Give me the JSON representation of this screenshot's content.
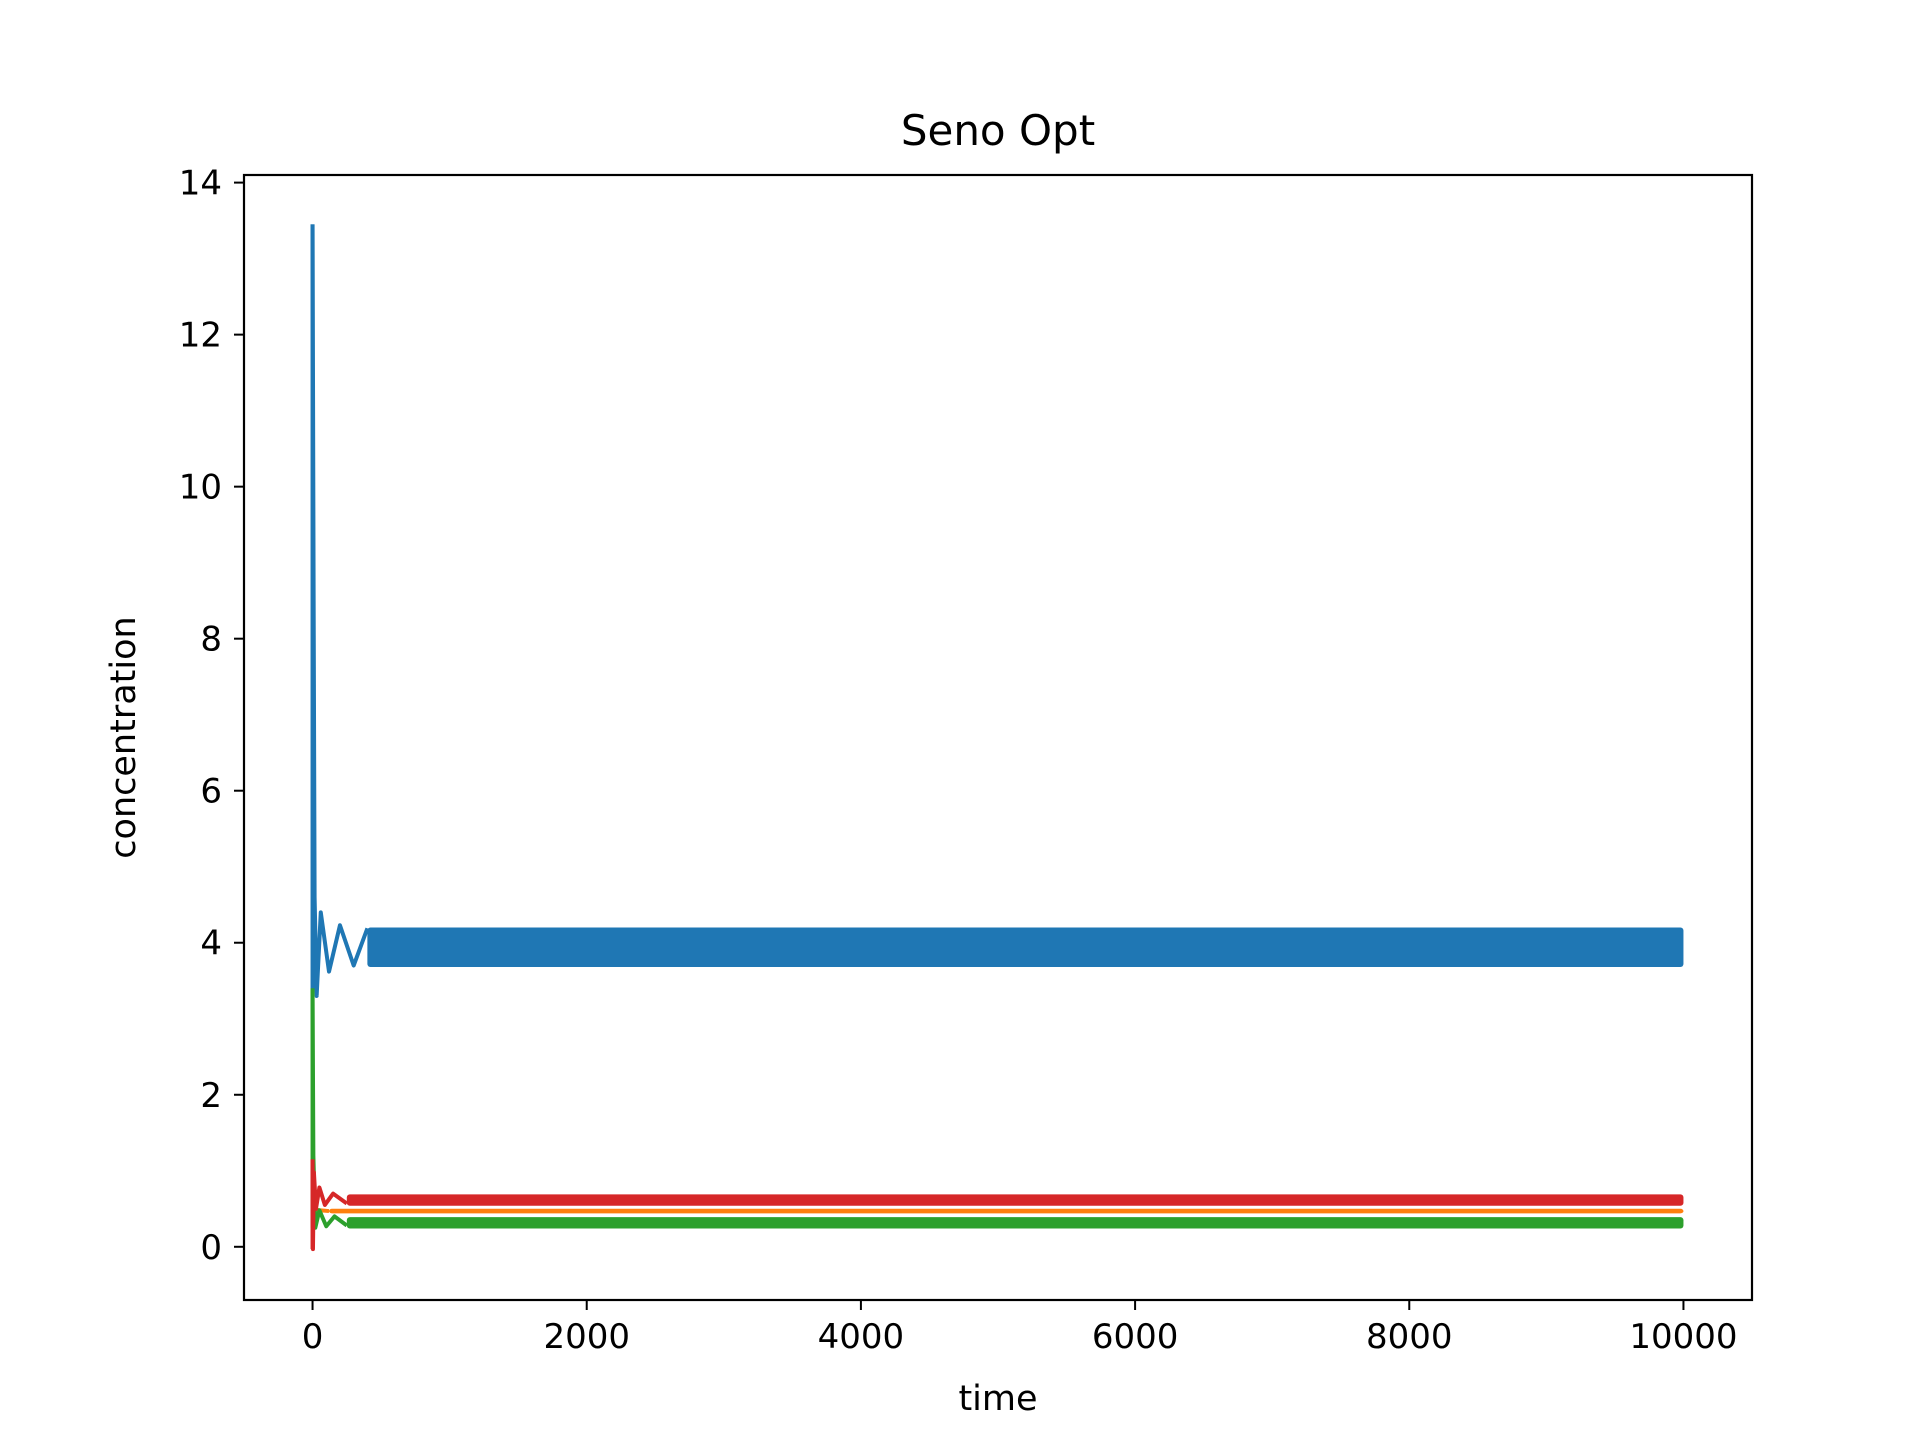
{
  "chart_data": {
    "type": "line",
    "title": "Seno Opt",
    "xlabel": "time",
    "ylabel": "concentration",
    "xlim": [
      -500,
      10500
    ],
    "ylim": [
      -0.7,
      14.1
    ],
    "xticks": [
      0,
      2000,
      4000,
      6000,
      8000,
      10000
    ],
    "yticks": [
      0,
      2,
      4,
      6,
      8,
      10,
      12,
      14
    ],
    "grid": false,
    "legend": "none",
    "series": [
      {
        "color": "#1f77b4",
        "initial": 13.45,
        "transient": [
          [
            0,
            13.45
          ],
          [
            8,
            8.5
          ],
          [
            15,
            4.6
          ],
          [
            30,
            3.3
          ],
          [
            60,
            4.4
          ],
          [
            120,
            3.62
          ],
          [
            200,
            4.23
          ],
          [
            300,
            3.7
          ],
          [
            400,
            4.19
          ]
        ],
        "band_low": 3.68,
        "band_high": 4.2,
        "t_end": 10000
      },
      {
        "color": "#ff7f0e",
        "initial": 0.5,
        "transient": [
          [
            0,
            0.5
          ],
          [
            50,
            0.48
          ],
          [
            120,
            0.47
          ]
        ],
        "band_low": 0.44,
        "band_high": 0.5,
        "t_end": 10000
      },
      {
        "color": "#2ca02c",
        "initial": 3.4,
        "transient": [
          [
            0,
            3.4
          ],
          [
            6,
            1.2
          ],
          [
            20,
            0.25
          ],
          [
            50,
            0.48
          ],
          [
            100,
            0.27
          ],
          [
            160,
            0.4
          ],
          [
            250,
            0.28
          ]
        ],
        "band_low": 0.24,
        "band_high": 0.39,
        "t_end": 10000
      },
      {
        "color": "#d62728",
        "initial": 1.15,
        "transient": [
          [
            0,
            1.15
          ],
          [
            3,
            -0.03
          ],
          [
            10,
            0.98
          ],
          [
            25,
            0.5
          ],
          [
            50,
            0.78
          ],
          [
            90,
            0.55
          ],
          [
            150,
            0.7
          ],
          [
            250,
            0.57
          ]
        ],
        "band_low": 0.54,
        "band_high": 0.69,
        "t_end": 10000
      }
    ]
  }
}
